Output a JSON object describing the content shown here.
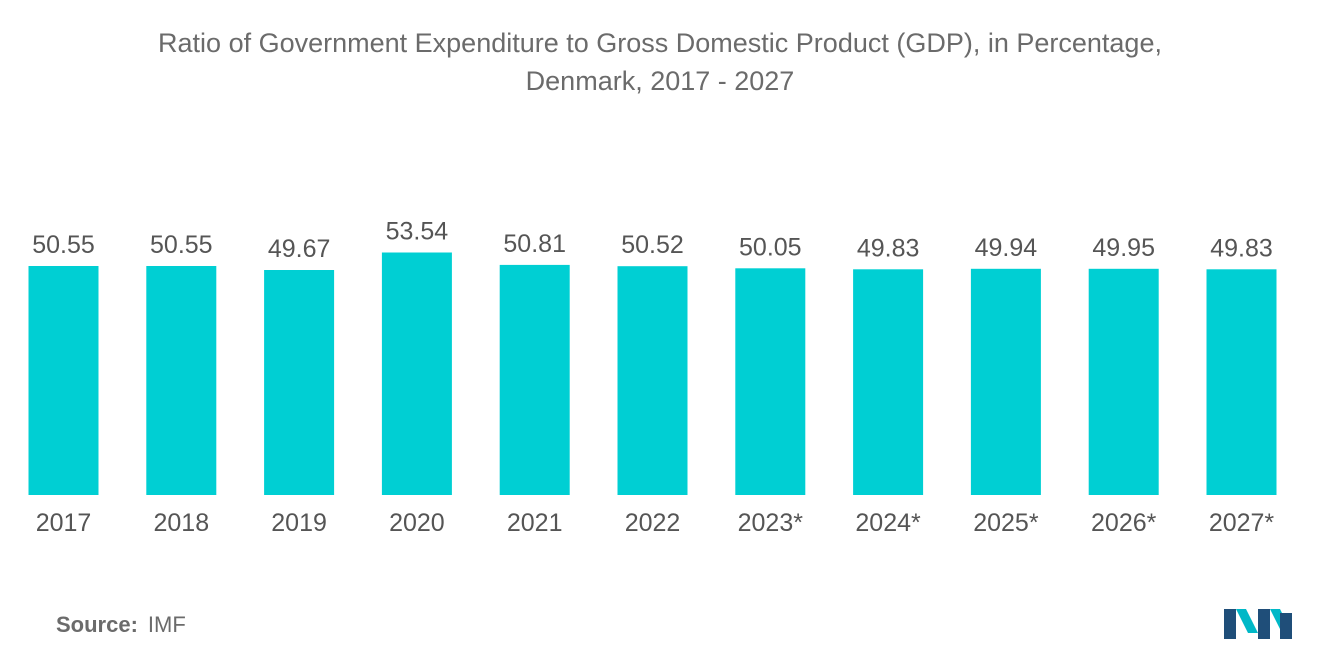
{
  "title_line1": "Ratio of Government Expenditure to Gross Domestic Product (GDP), in Percentage,",
  "title_line2": "Denmark, 2017 - 2027",
  "source_label": "Source:",
  "source_value": "IMF",
  "logo_icon": "mordor-intelligence-logo-icon",
  "colors": {
    "bar": "#00cfd3",
    "text": "#555555",
    "title": "#6b6b6b",
    "logo_dark": "#1f4e79",
    "logo_light": "#00b8c7"
  },
  "chart_data": {
    "type": "bar",
    "title": "Ratio of Government Expenditure to Gross Domestic Product (GDP), in Percentage, Denmark, 2017 - 2027",
    "categories": [
      "2017",
      "2018",
      "2019",
      "2020",
      "2021",
      "2022",
      "2023*",
      "2024*",
      "2025*",
      "2026*",
      "2027*"
    ],
    "values": [
      50.55,
      50.55,
      49.67,
      53.54,
      50.81,
      50.52,
      50.05,
      49.83,
      49.94,
      49.95,
      49.83
    ],
    "value_labels": [
      "50.55",
      "50.55",
      "49.67",
      "53.54",
      "50.81",
      "50.52",
      "50.05",
      "49.83",
      "49.94",
      "49.95",
      "49.83"
    ],
    "xlabel": "",
    "ylabel": "",
    "grid": false,
    "legend": "none"
  }
}
